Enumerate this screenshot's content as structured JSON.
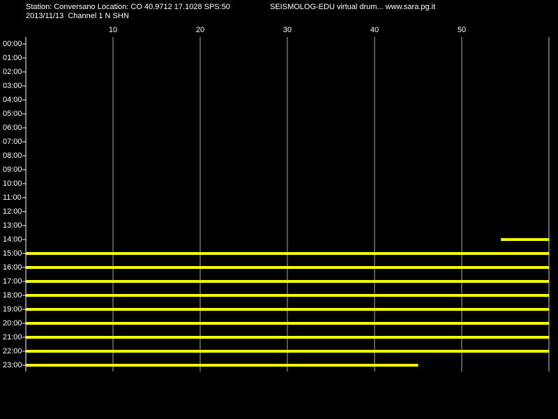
{
  "chart_data": {
    "type": "drum",
    "station": "Station: Conversano Location: CO 40.9712 17.1028 SPS:50",
    "title": "SEISMOLOG-EDU virtual drum... www.sara.pg.it",
    "subtitle": "2013/11/13  Channel 1 N SHN",
    "xlim": [
      0,
      60
    ],
    "xticks": [
      10,
      20,
      30,
      40,
      50
    ],
    "grid": true,
    "categories": [
      "00:00",
      "01:00",
      "02:00",
      "03:00",
      "04:00",
      "05:00",
      "06:00",
      "07:00",
      "08:00",
      "09:00",
      "10:00",
      "11:00",
      "12:00",
      "13:00",
      "14:00",
      "15:00",
      "16:00",
      "17:00",
      "18:00",
      "19:00",
      "20:00",
      "21:00",
      "22:00",
      "23:00"
    ],
    "start": [
      null,
      null,
      null,
      null,
      null,
      null,
      null,
      null,
      null,
      null,
      null,
      null,
      null,
      null,
      54.5,
      0,
      0,
      0,
      0,
      0,
      0,
      0,
      0,
      0
    ],
    "end": [
      null,
      null,
      null,
      null,
      null,
      null,
      null,
      null,
      null,
      null,
      null,
      null,
      null,
      null,
      60,
      60,
      60,
      60,
      60,
      60,
      60,
      60,
      60,
      45
    ],
    "color": "#ffff00"
  }
}
